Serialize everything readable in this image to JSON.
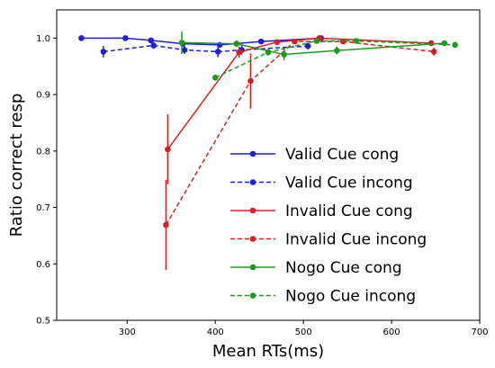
{
  "chart_data": {
    "type": "line",
    "xlabel": "Mean RTs(ms)",
    "ylabel": "Ratio correct resp",
    "xlim": [
      220,
      700
    ],
    "ylim": [
      0.5,
      1.05
    ],
    "xticks": [
      300,
      400,
      500,
      600,
      700
    ],
    "yticks": [
      0.5,
      0.6,
      0.7,
      0.8,
      0.9,
      1.0
    ],
    "legend_position": "lower-right",
    "grid": false,
    "series": [
      {
        "name": "Valid Cue cong",
        "color": "#1f1fd6",
        "linestyle": "solid",
        "points": [
          {
            "x": 248,
            "y": 1.0,
            "err": 0.002
          },
          {
            "x": 298,
            "y": 1.0,
            "err": 0.002
          },
          {
            "x": 327,
            "y": 0.996,
            "err": 0.004
          },
          {
            "x": 363,
            "y": 0.99,
            "err": 0.005
          },
          {
            "x": 405,
            "y": 0.988,
            "err": 0.004
          },
          {
            "x": 452,
            "y": 0.994,
            "err": 0.003
          },
          {
            "x": 520,
            "y": 1.0,
            "err": 0.002
          }
        ]
      },
      {
        "name": "Valid Cue incong",
        "color": "#1f1fd6",
        "linestyle": "dashed",
        "points": [
          {
            "x": 273,
            "y": 0.976,
            "err": 0.01
          },
          {
            "x": 330,
            "y": 0.987,
            "err": 0.006
          },
          {
            "x": 365,
            "y": 0.979,
            "err": 0.007
          },
          {
            "x": 403,
            "y": 0.976,
            "err": 0.01
          },
          {
            "x": 430,
            "y": 0.979,
            "err": 0.008
          },
          {
            "x": 505,
            "y": 0.986,
            "err": 0.006
          }
        ]
      },
      {
        "name": "Invalid Cue cong",
        "color": "#d62020",
        "linestyle": "solid",
        "points": [
          {
            "x": 346,
            "y": 0.803,
            "err": 0.062
          },
          {
            "x": 427,
            "y": 0.975,
            "err": 0.01
          },
          {
            "x": 470,
            "y": 0.993,
            "err": 0.004
          },
          {
            "x": 518,
            "y": 1.0,
            "err": 0.003
          },
          {
            "x": 645,
            "y": 0.991,
            "err": 0.004
          }
        ]
      },
      {
        "name": "Invalid Cue incong",
        "color": "#d62020",
        "linestyle": "dashed",
        "points": [
          {
            "x": 344,
            "y": 0.669,
            "err": 0.08
          },
          {
            "x": 440,
            "y": 0.924,
            "err": 0.049
          },
          {
            "x": 490,
            "y": 0.994,
            "err": 0.005
          },
          {
            "x": 545,
            "y": 0.994,
            "err": 0.004
          },
          {
            "x": 648,
            "y": 0.976,
            "err": 0.007
          }
        ]
      },
      {
        "name": "Nogo Cue cong",
        "color": "#1e9a1e",
        "linestyle": "solid",
        "points": [
          {
            "x": 362,
            "y": 0.992,
            "err": 0.02
          },
          {
            "x": 424,
            "y": 0.99,
            "err": 0.006
          },
          {
            "x": 478,
            "y": 0.971,
            "err": 0.01
          },
          {
            "x": 538,
            "y": 0.978,
            "err": 0.007
          },
          {
            "x": 660,
            "y": 0.991,
            "err": 0.004
          }
        ]
      },
      {
        "name": "Nogo Cue incong",
        "color": "#1e9a1e",
        "linestyle": "dashed",
        "points": [
          {
            "x": 400,
            "y": 0.93,
            "err": 0.003
          },
          {
            "x": 460,
            "y": 0.975,
            "err": 0.006
          },
          {
            "x": 515,
            "y": 0.995,
            "err": 0.004
          },
          {
            "x": 560,
            "y": 0.995,
            "err": 0.004
          },
          {
            "x": 672,
            "y": 0.988,
            "err": 0.004
          }
        ]
      }
    ]
  }
}
